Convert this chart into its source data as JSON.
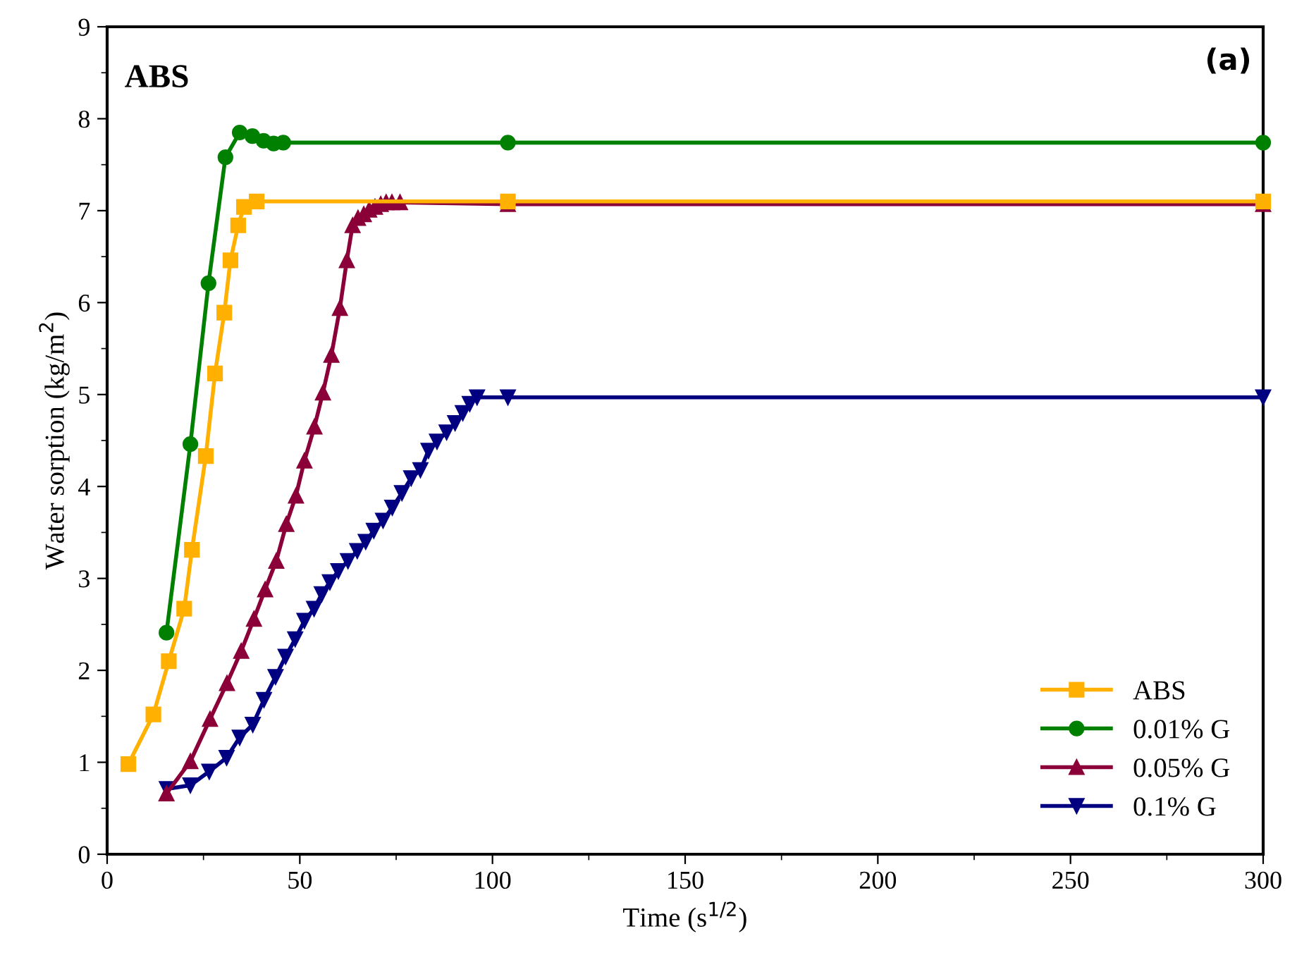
{
  "chart_data": {
    "type": "line",
    "xlabel": "Time (s$^{1/2}$)",
    "ylabel": "Water sorption (kg/m$^{2}$)",
    "annotations": [
      "ABS",
      "(a)"
    ],
    "xlim": [
      0,
      300
    ],
    "xticks": [
      0,
      50,
      100,
      150,
      200,
      250,
      300
    ],
    "ylim": [
      0,
      9
    ],
    "yticks": [
      0,
      1,
      2,
      3,
      4,
      5,
      6,
      7,
      8,
      9
    ],
    "grid": false,
    "legend": "bottom right",
    "line_style": "solid",
    "series": [
      {
        "name": "ABS",
        "color": "#ffb000",
        "marker": "square",
        "x": [
          5.5,
          12,
          16,
          20,
          22,
          25.6,
          28,
          30.4,
          32,
          34,
          35.5,
          38.8,
          104,
          300
        ],
        "values": [
          0.98,
          1.52,
          2.1,
          2.67,
          3.31,
          4.33,
          5.23,
          5.89,
          6.46,
          6.84,
          7.04,
          7.1,
          7.1,
          7.1
        ]
      },
      {
        "name": "0.01% G",
        "color": "#008000",
        "marker": "circle",
        "x": [
          15.4,
          21.6,
          26.3,
          30.7,
          34.4,
          37.7,
          40.6,
          43.2,
          45.7,
          104,
          300
        ],
        "values": [
          2.41,
          4.46,
          6.21,
          7.58,
          7.85,
          7.81,
          7.76,
          7.73,
          7.74,
          7.74,
          7.74
        ]
      },
      {
        "name": "0.05% G",
        "color": "#8b0038",
        "marker": "triangle",
        "x": [
          15.4,
          21.6,
          26.7,
          31.1,
          34.8,
          38.1,
          41,
          43.9,
          46.5,
          49,
          51.2,
          53.8,
          56,
          58.2,
          60.4,
          62.2,
          63.7,
          65.1,
          66.6,
          68,
          69.5,
          71,
          72.4,
          73.9,
          76,
          104,
          300
        ],
        "values": [
          0.66,
          1.01,
          1.47,
          1.86,
          2.21,
          2.56,
          2.88,
          3.19,
          3.59,
          3.9,
          4.28,
          4.65,
          5.02,
          5.43,
          5.94,
          6.46,
          6.84,
          6.92,
          6.96,
          7.01,
          7.04,
          7.07,
          7.09,
          7.09,
          7.09,
          7.07,
          7.07
        ]
      },
      {
        "name": "0.1% G",
        "color": "#000080",
        "marker": "triangle_down",
        "x": [
          15.5,
          21.6,
          26.5,
          31,
          34.4,
          37.8,
          40.7,
          43.7,
          46.3,
          48.8,
          51.2,
          53.7,
          55.7,
          57.8,
          60,
          62.5,
          64.9,
          67.1,
          69.2,
          71.6,
          74,
          76.5,
          78.9,
          81.3,
          83.4,
          85.6,
          88.1,
          90.3,
          92.3,
          94.1,
          96,
          104,
          300
        ],
        "values": [
          0.71,
          0.75,
          0.9,
          1.05,
          1.27,
          1.41,
          1.68,
          1.93,
          2.15,
          2.34,
          2.54,
          2.67,
          2.83,
          2.96,
          3.08,
          3.19,
          3.3,
          3.4,
          3.52,
          3.63,
          3.77,
          3.93,
          4.09,
          4.18,
          4.39,
          4.49,
          4.59,
          4.69,
          4.8,
          4.9,
          4.97,
          4.97,
          4.97
        ]
      }
    ]
  }
}
